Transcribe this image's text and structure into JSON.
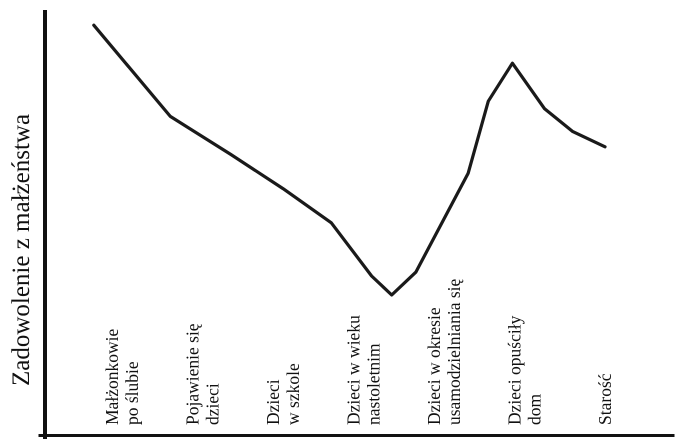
{
  "chart_data": {
    "type": "line",
    "title": "",
    "xlabel": "",
    "ylabel": "Zadowolenie z małżeństwa",
    "grid": false,
    "legend": "none",
    "line_color": "#1a1a1a",
    "axis_color": "#111111",
    "ylim": [
      0,
      100
    ],
    "categories": [
      [
        "Małżonkowie",
        "po ślubie"
      ],
      [
        "Pojawienie się",
        "dzieci"
      ],
      [
        "Dzieci",
        "w szkole"
      ],
      [
        "Dzieci w wieku",
        "nastoletnim"
      ],
      [
        "Dzieci w okresie",
        "usamodzielniania się"
      ],
      [
        "Dzieci opuściły",
        "dom"
      ],
      [
        "Starość"
      ]
    ],
    "x": [
      0,
      1,
      2,
      3,
      4,
      5,
      6
    ],
    "series": [
      {
        "values": [
          93,
          68,
          46,
          23,
          43,
          78,
          64
        ],
        "control_points": [
          {
            "x": -0.35,
            "y": 96
          },
          {
            "x": 0.6,
            "y": 72
          },
          {
            "x": 1.35,
            "y": 62
          },
          {
            "x": 2.0,
            "y": 53
          },
          {
            "x": 2.6,
            "y": 44
          },
          {
            "x": 3.1,
            "y": 30
          },
          {
            "x": 3.35,
            "y": 25
          },
          {
            "x": 3.65,
            "y": 31
          },
          {
            "x": 4.3,
            "y": 57
          },
          {
            "x": 4.55,
            "y": 76
          },
          {
            "x": 4.85,
            "y": 86
          },
          {
            "x": 5.25,
            "y": 74
          },
          {
            "x": 5.6,
            "y": 68
          },
          {
            "x": 6.0,
            "y": 64
          }
        ]
      }
    ]
  }
}
